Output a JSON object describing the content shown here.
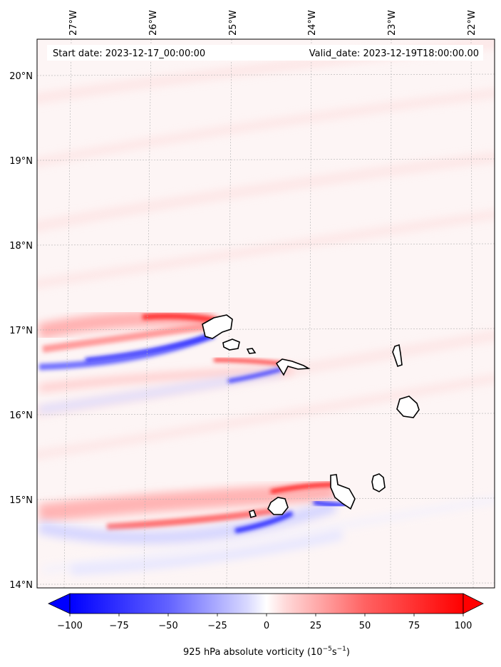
{
  "header": {
    "start_date": "Start date: 2023-12-17_00:00:00",
    "valid_date": "Valid_date: 2023-12-19T18:00:00.00"
  },
  "axes": {
    "lon_labels": [
      "27°W",
      "26°W",
      "25°W",
      "24°W",
      "23°W",
      "22°W"
    ],
    "lat_labels": [
      "20°N",
      "19°N",
      "18°N",
      "17°N",
      "16°N",
      "15°N",
      "14°N"
    ]
  },
  "colorbar": {
    "ticks": [
      "−100",
      "−75",
      "−50",
      "−25",
      "0",
      "25",
      "50",
      "75",
      "100"
    ],
    "min": -100,
    "max": 100,
    "label_main": "925 hPa absolute vorticity (10",
    "label_exp1": "−5",
    "label_mid": "s",
    "label_exp2": "−1",
    "label_end": ")",
    "neg_color": "#0000ff",
    "pos_color": "#ff0000"
  },
  "colors": {
    "coast": "#000000",
    "grid": "#b0b0b0",
    "background_field": "#fdf2f2"
  }
}
